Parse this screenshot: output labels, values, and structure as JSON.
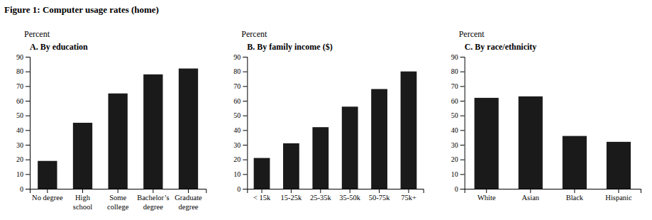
{
  "title": "Figure 1: Computer usage rates (home)",
  "chart_data": [
    {
      "type": "bar",
      "title": "A. By education",
      "ylabel": "Percent",
      "categories": [
        "No degree",
        "High\nschool",
        "Some\ncollege",
        "Bachelor’s\ndegree",
        "Graduate\ndegree"
      ],
      "values": [
        19,
        45,
        65,
        78,
        82
      ],
      "color": "#1a1a1a",
      "ylim": [
        0,
        90
      ],
      "yticks": [
        0,
        10,
        20,
        30,
        40,
        50,
        60,
        70,
        80,
        90
      ],
      "grid": false
    },
    {
      "type": "bar",
      "title": "B. By family income ($)",
      "ylabel": "Percent",
      "categories": [
        "< 15k",
        "15-25k",
        "25-35k",
        "35-50k",
        "50-75k",
        "75k+"
      ],
      "values": [
        21,
        31,
        42,
        56,
        68,
        80
      ],
      "color": "#1a1a1a",
      "ylim": [
        0,
        90
      ],
      "yticks": [
        0,
        10,
        20,
        30,
        40,
        50,
        60,
        70,
        80,
        90
      ],
      "grid": false
    },
    {
      "type": "bar",
      "title": "C. By race/ethnicity",
      "ylabel": "Percent",
      "categories": [
        "White",
        "Asian",
        "Black",
        "Hispanic"
      ],
      "values": [
        62,
        63,
        36,
        32
      ],
      "color": "#1a1a1a",
      "ylim": [
        0,
        90
      ],
      "yticks": [
        0,
        10,
        20,
        30,
        40,
        50,
        60,
        70,
        80,
        90
      ],
      "grid": false
    }
  ]
}
